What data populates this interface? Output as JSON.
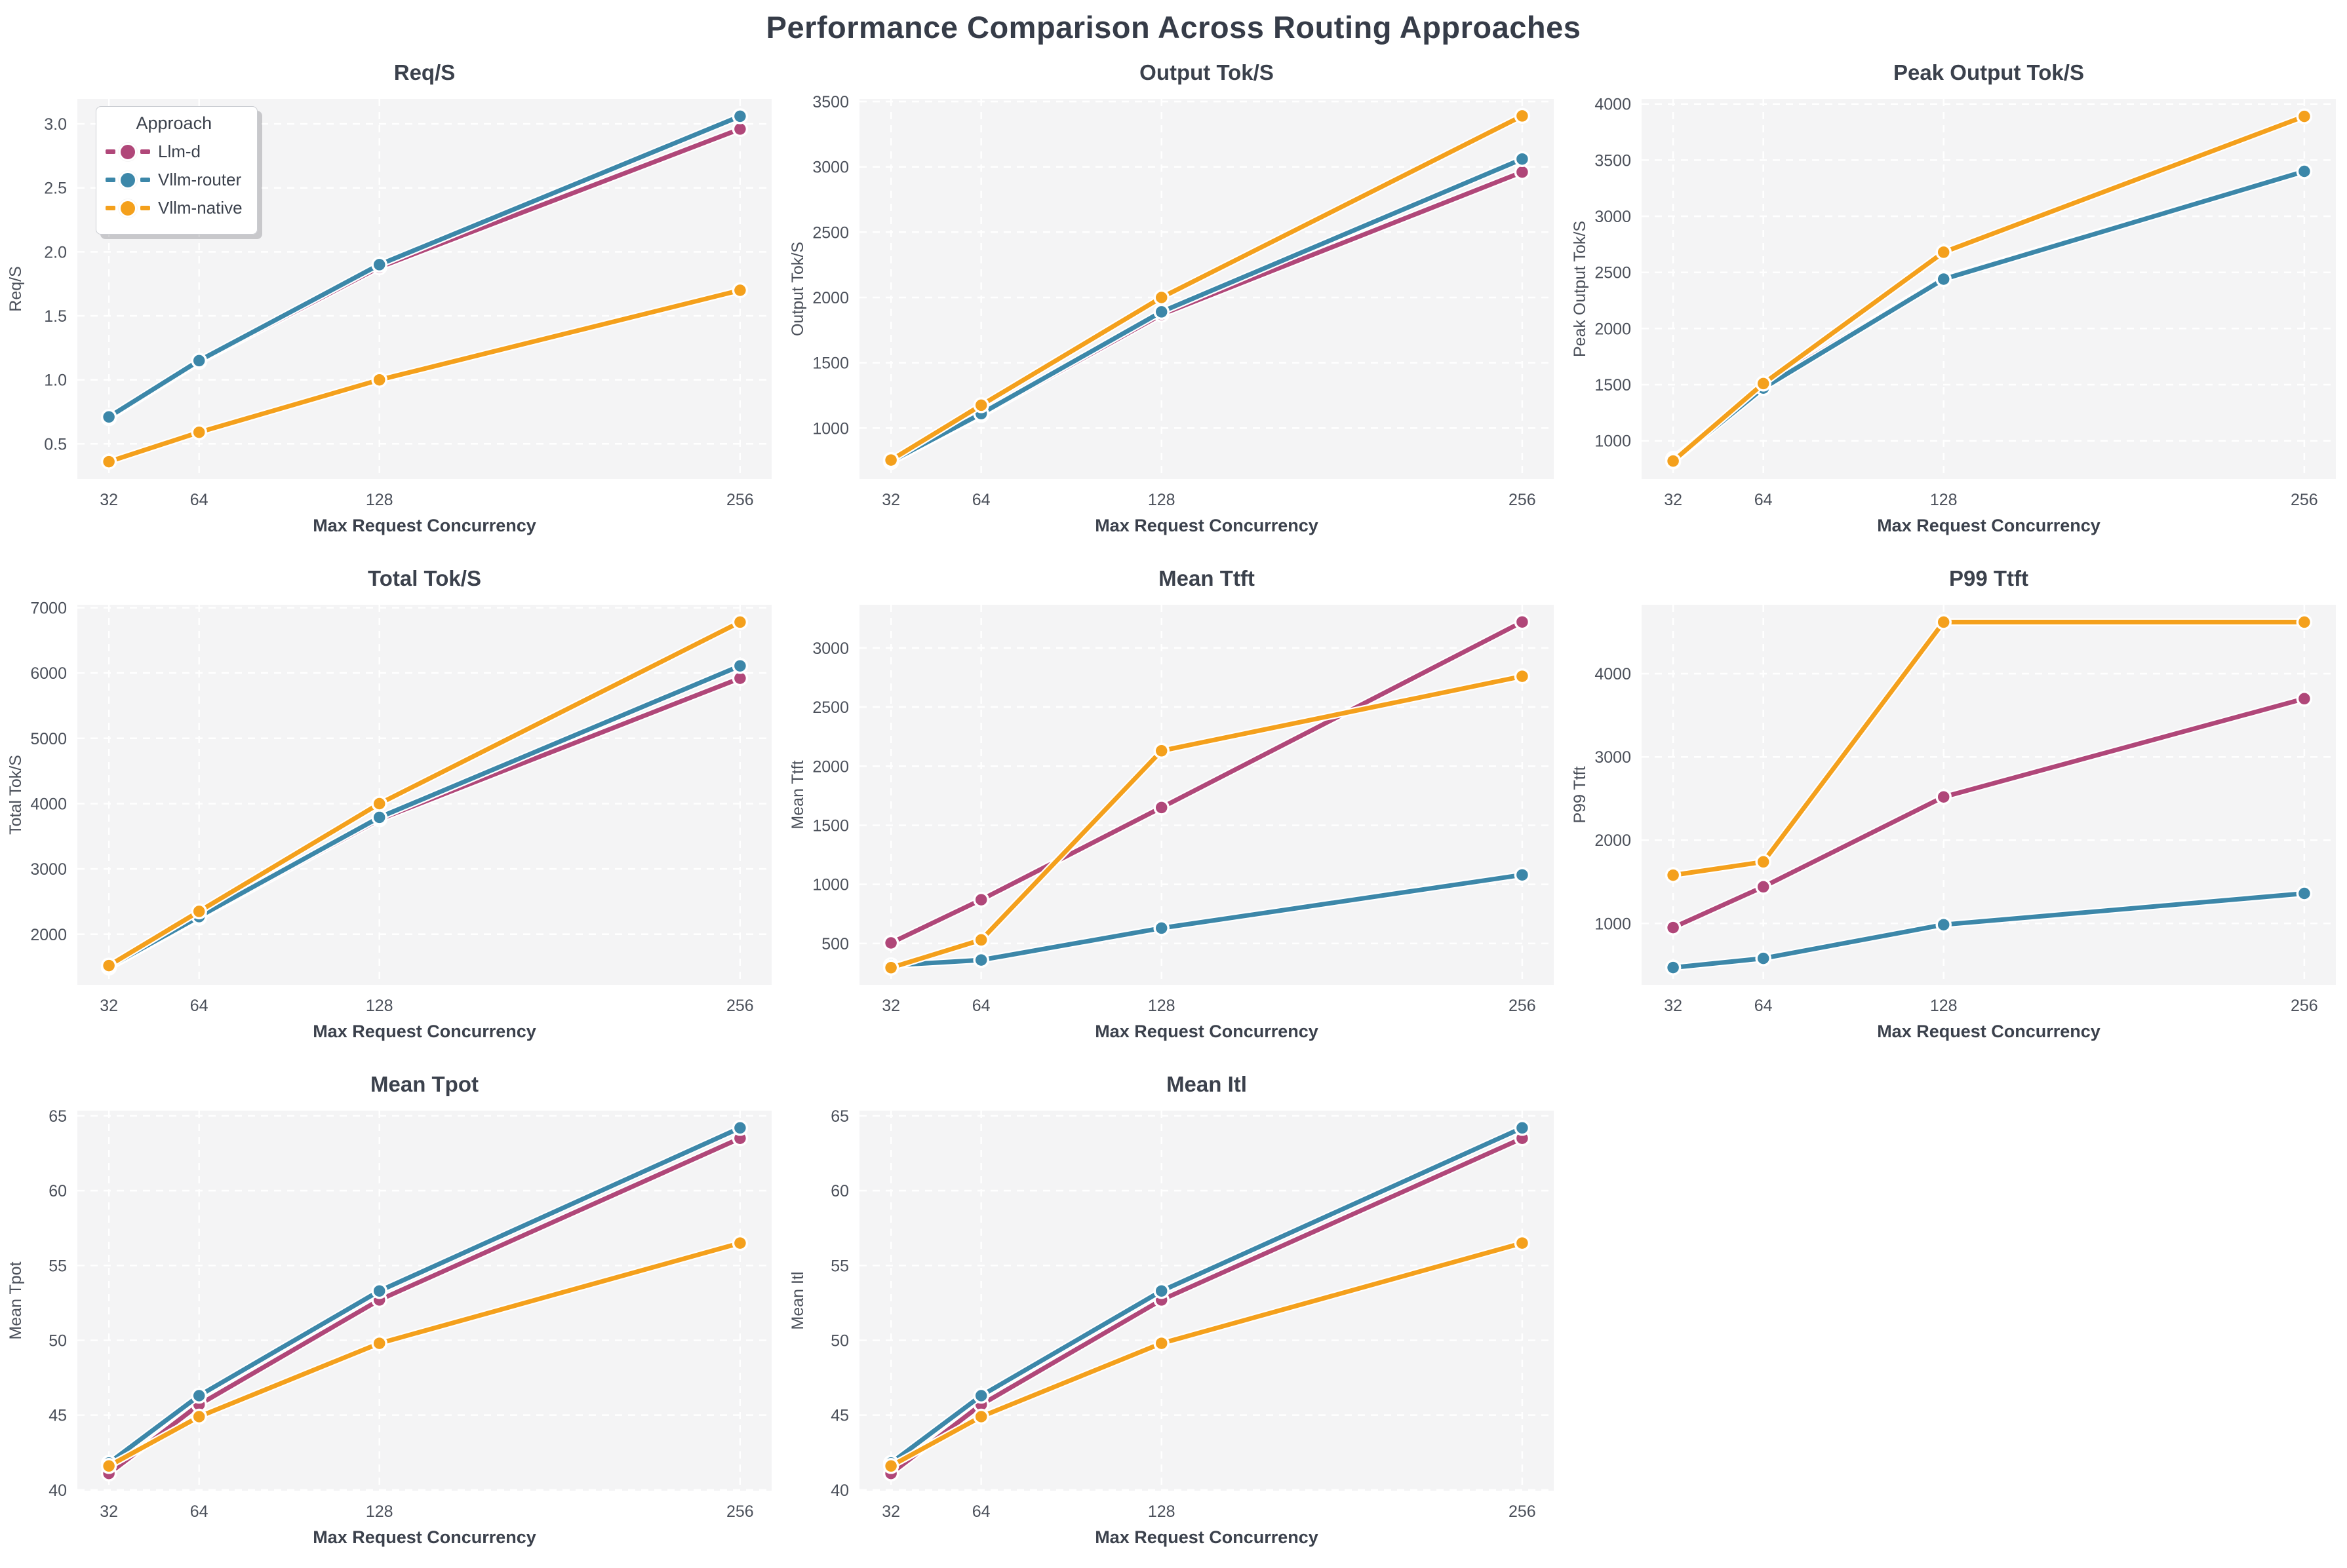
{
  "page_title": "Performance Comparison Across Routing Approaches",
  "legend": {
    "title": "Approach",
    "entries": [
      "Llm-d",
      "Vllm-router",
      "Vllm-native"
    ]
  },
  "colors": {
    "llm_d": "#b04779",
    "vllm_router": "#3c87a9",
    "vllm_native": "#f4a01c",
    "title_text": "#3b414c",
    "tick_text": "#4b505a",
    "plot_bg": "#f4f4f5",
    "grid": "#ffffff",
    "figure_bg": "#ffffff"
  },
  "series_colors": {
    "Llm-d": "#b04779",
    "Vllm-router": "#3c87a9",
    "Vllm-native": "#f4a01c"
  },
  "xlabel": "Max Request Concurrency",
  "x_ticks": [
    32,
    64,
    128,
    256
  ],
  "x_tick_labels": [
    "32",
    "64",
    "128",
    "256"
  ],
  "xlim": [
    20.8,
    267.2
  ],
  "chart_data": [
    {
      "type": "line",
      "title": "Req/S",
      "ylabel": "Req/S",
      "ylim": [
        0.225,
        3.195
      ],
      "yticks": [
        0.5,
        1.0,
        1.5,
        2.0,
        2.5,
        3.0
      ],
      "ytick_labels": [
        "0.5",
        "1.0",
        "1.5",
        "2.0",
        "2.5",
        "3.0"
      ],
      "x": [
        32,
        64,
        128,
        256
      ],
      "grid": true,
      "legend_position": "upper left",
      "series": [
        {
          "name": "Llm-d",
          "values": [
            0.7,
            1.14,
            1.88,
            2.96
          ]
        },
        {
          "name": "Vllm-router",
          "values": [
            0.71,
            1.15,
            1.9,
            3.06
          ]
        },
        {
          "name": "Vllm-native",
          "values": [
            0.36,
            0.59,
            1.0,
            1.7
          ]
        }
      ]
    },
    {
      "type": "line",
      "title": "Output Tok/S",
      "ylabel": "Output Tok/S",
      "ylim": [
        610,
        3520
      ],
      "yticks": [
        1000,
        1500,
        2000,
        2500,
        3000,
        3500
      ],
      "ytick_labels": [
        "1000",
        "1500",
        "2000",
        "2500",
        "3000",
        "3500"
      ],
      "x": [
        32,
        64,
        128,
        256
      ],
      "grid": true,
      "series": [
        {
          "name": "Llm-d",
          "values": [
            740,
            1100,
            1870,
            2960
          ]
        },
        {
          "name": "Vllm-router",
          "values": [
            745,
            1110,
            1890,
            3060
          ]
        },
        {
          "name": "Vllm-native",
          "values": [
            755,
            1175,
            2000,
            3390
          ]
        }
      ]
    },
    {
      "type": "line",
      "title": "Peak Output Tok/S",
      "ylabel": "Peak Output Tok/S",
      "ylim": [
        660,
        4045
      ],
      "yticks": [
        1000,
        1500,
        2000,
        2500,
        3000,
        3500,
        4000
      ],
      "ytick_labels": [
        "1000",
        "1500",
        "2000",
        "2500",
        "3000",
        "3500",
        "4000"
      ],
      "x": [
        32,
        64,
        128,
        256
      ],
      "grid": true,
      "series": [
        {
          "name": "Llm-d",
          "values": [
            840,
            1490,
            2450,
            3400
          ]
        },
        {
          "name": "Vllm-router",
          "values": [
            815,
            1470,
            2440,
            3400
          ]
        },
        {
          "name": "Vllm-native",
          "values": [
            820,
            1510,
            2680,
            3890
          ]
        }
      ]
    },
    {
      "type": "line",
      "title": "Total Tok/S",
      "ylabel": "Total Tok/S",
      "ylim": [
        1225,
        7045
      ],
      "yticks": [
        2000,
        3000,
        4000,
        5000,
        6000,
        7000
      ],
      "ytick_labels": [
        "2000",
        "3000",
        "4000",
        "5000",
        "6000",
        "7000"
      ],
      "x": [
        32,
        64,
        128,
        256
      ],
      "grid": true,
      "series": [
        {
          "name": "Llm-d",
          "values": [
            1490,
            2250,
            3760,
            5920
          ]
        },
        {
          "name": "Vllm-router",
          "values": [
            1500,
            2270,
            3790,
            6110
          ]
        },
        {
          "name": "Vllm-native",
          "values": [
            1520,
            2350,
            4000,
            6780
          ]
        }
      ]
    },
    {
      "type": "line",
      "title": "Mean Ttft",
      "ylabel": "Mean Ttft",
      "ylim": [
        150,
        3365
      ],
      "yticks": [
        500,
        1000,
        1500,
        2000,
        2500,
        3000
      ],
      "ytick_labels": [
        "500",
        "1000",
        "1500",
        "2000",
        "2500",
        "3000"
      ],
      "x": [
        32,
        64,
        128,
        256
      ],
      "grid": true,
      "series": [
        {
          "name": "Llm-d",
          "values": [
            505,
            870,
            1650,
            3220
          ]
        },
        {
          "name": "Vllm-router",
          "values": [
            315,
            360,
            630,
            1080
          ]
        },
        {
          "name": "Vllm-native",
          "values": [
            295,
            530,
            2130,
            2760
          ]
        }
      ]
    },
    {
      "type": "line",
      "title": "P99 Ttft",
      "ylabel": "P99 Ttft",
      "ylim": [
        262,
        4828
      ],
      "yticks": [
        1000,
        2000,
        3000,
        4000
      ],
      "ytick_labels": [
        "1000",
        "2000",
        "3000",
        "4000"
      ],
      "x": [
        32,
        64,
        128,
        256
      ],
      "grid": true,
      "series": [
        {
          "name": "Llm-d",
          "values": [
            950,
            1440,
            2520,
            3700
          ]
        },
        {
          "name": "Vllm-router",
          "values": [
            470,
            580,
            985,
            1360
          ]
        },
        {
          "name": "Vllm-native",
          "values": [
            1580,
            1740,
            4620,
            4620
          ]
        }
      ]
    },
    {
      "type": "line",
      "title": "Mean Tpot",
      "ylabel": "Mean Tpot",
      "ylim": [
        39.95,
        65.35
      ],
      "yticks": [
        40,
        45,
        50,
        55,
        60,
        65
      ],
      "ytick_labels": [
        "40",
        "45",
        "50",
        "55",
        "60",
        "65"
      ],
      "x": [
        32,
        64,
        128,
        256
      ],
      "grid": true,
      "series": [
        {
          "name": "Llm-d",
          "values": [
            41.1,
            45.7,
            52.7,
            63.5
          ]
        },
        {
          "name": "Vllm-router",
          "values": [
            41.8,
            46.3,
            53.3,
            64.2
          ]
        },
        {
          "name": "Vllm-native",
          "values": [
            41.6,
            44.9,
            49.8,
            56.5
          ]
        }
      ]
    },
    {
      "type": "line",
      "title": "Mean Itl",
      "ylabel": "Mean Itl",
      "ylim": [
        39.95,
        65.35
      ],
      "yticks": [
        40,
        45,
        50,
        55,
        60,
        65
      ],
      "ytick_labels": [
        "40",
        "45",
        "50",
        "55",
        "60",
        "65"
      ],
      "x": [
        32,
        64,
        128,
        256
      ],
      "grid": true,
      "series": [
        {
          "name": "Llm-d",
          "values": [
            41.1,
            45.7,
            52.7,
            63.5
          ]
        },
        {
          "name": "Vllm-router",
          "values": [
            41.8,
            46.3,
            53.3,
            64.2
          ]
        },
        {
          "name": "Vllm-native",
          "values": [
            41.6,
            44.9,
            49.8,
            56.5
          ]
        }
      ]
    }
  ]
}
